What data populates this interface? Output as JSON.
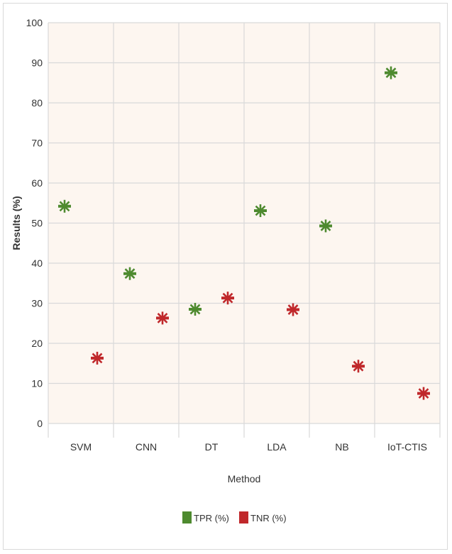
{
  "chart_data": {
    "type": "scatter",
    "title": "",
    "xlabel": "Method",
    "ylabel": "Results (%)",
    "ylim": [
      0,
      100
    ],
    "yticks": [
      0,
      10,
      20,
      30,
      40,
      50,
      60,
      70,
      80,
      90,
      100
    ],
    "categories": [
      "SVM",
      "CNN",
      "DT",
      "LDA",
      "NB",
      "IoT-CTIS"
    ],
    "grid": true,
    "legend_position": "bottom",
    "series": [
      {
        "name": "TPR (%)",
        "color": "#4e8a2f",
        "values": [
          54.2,
          37.4,
          28.5,
          53.1,
          49.3,
          87.5
        ]
      },
      {
        "name": "TNR (%)",
        "color": "#c0282b",
        "values": [
          16.3,
          26.3,
          31.3,
          28.4,
          14.3,
          7.5
        ]
      }
    ]
  }
}
